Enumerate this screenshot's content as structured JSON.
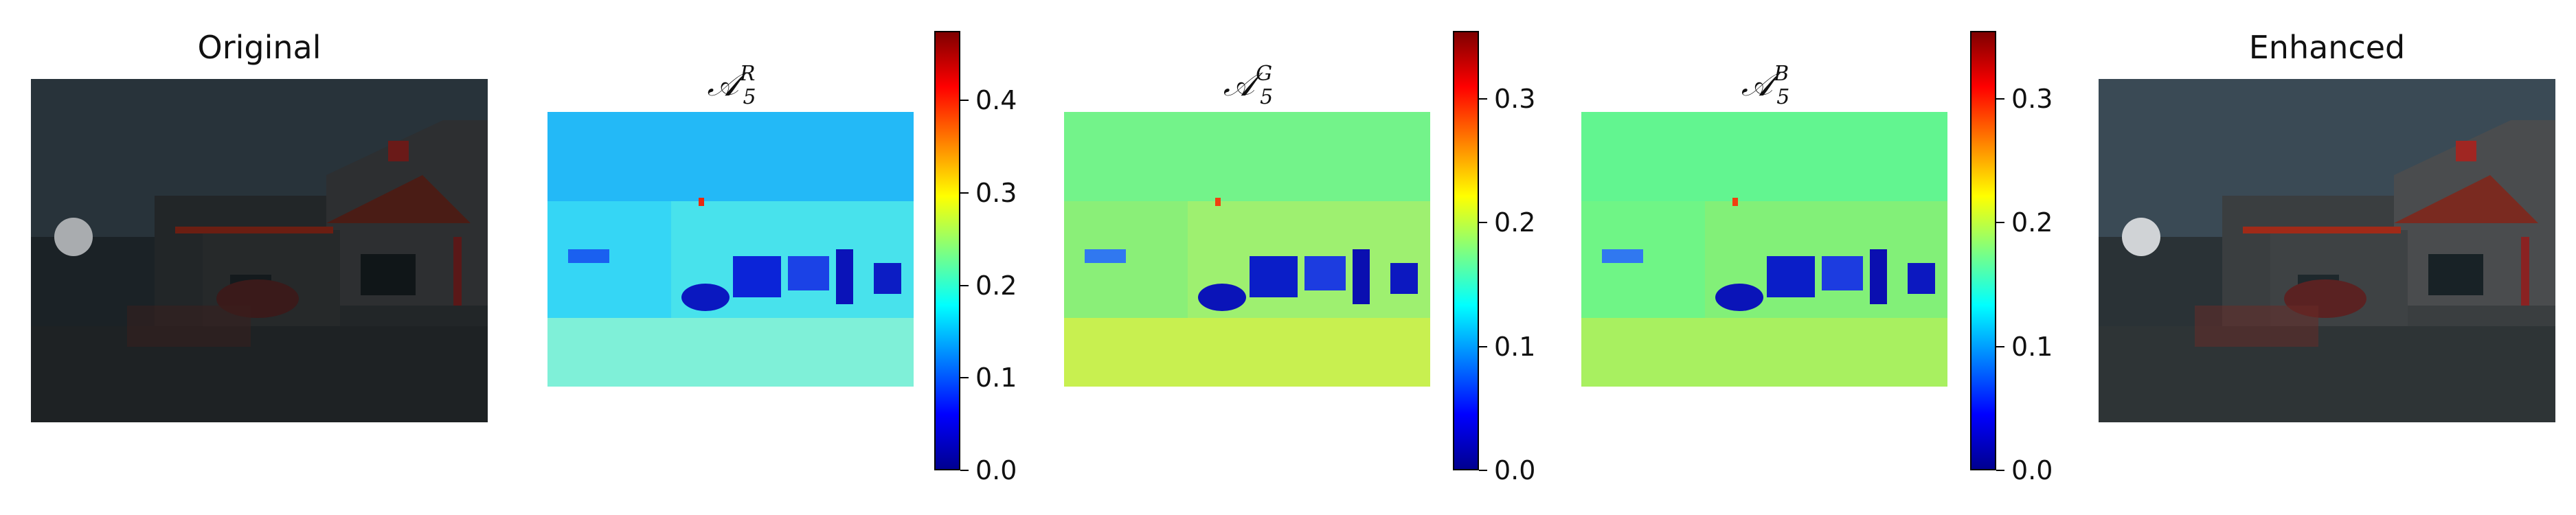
{
  "panels": [
    {
      "id": "original",
      "title": "Original"
    },
    {
      "id": "map_r",
      "title_base": "𝒜",
      "title_sup": "R",
      "title_sub": "5"
    },
    {
      "id": "map_g",
      "title_base": "𝒜",
      "title_sup": "G",
      "title_sub": "5"
    },
    {
      "id": "map_b",
      "title_base": "𝒜",
      "title_sup": "B",
      "title_sub": "5"
    },
    {
      "id": "enhanced",
      "title": "Enhanced"
    }
  ],
  "colorbars": [
    {
      "panel": "map_r",
      "min": 0.0,
      "max": 0.475,
      "ticks": [
        "0.0",
        "0.1",
        "0.2",
        "0.3",
        "0.4"
      ],
      "tick_values": [
        0.0,
        0.1,
        0.2,
        0.3,
        0.4
      ]
    },
    {
      "panel": "map_g",
      "min": 0.0,
      "max": 0.355,
      "ticks": [
        "0.0",
        "0.1",
        "0.2",
        "0.3"
      ],
      "tick_values": [
        0.0,
        0.1,
        0.2,
        0.3
      ]
    },
    {
      "panel": "map_b",
      "min": 0.0,
      "max": 0.355,
      "ticks": [
        "0.0",
        "0.1",
        "0.2",
        "0.3"
      ],
      "tick_values": [
        0.0,
        0.1,
        0.2,
        0.3
      ]
    }
  ],
  "colors": {
    "jet_stops": [
      "#00008f",
      "#0000ff",
      "#00ffff",
      "#7fff7f",
      "#ffff00",
      "#ff0000",
      "#7f0000"
    ],
    "map_r_dominant": "#35d6f5",
    "map_g_dominant": "#8aef78",
    "map_b_dominant": "#6ff586"
  }
}
